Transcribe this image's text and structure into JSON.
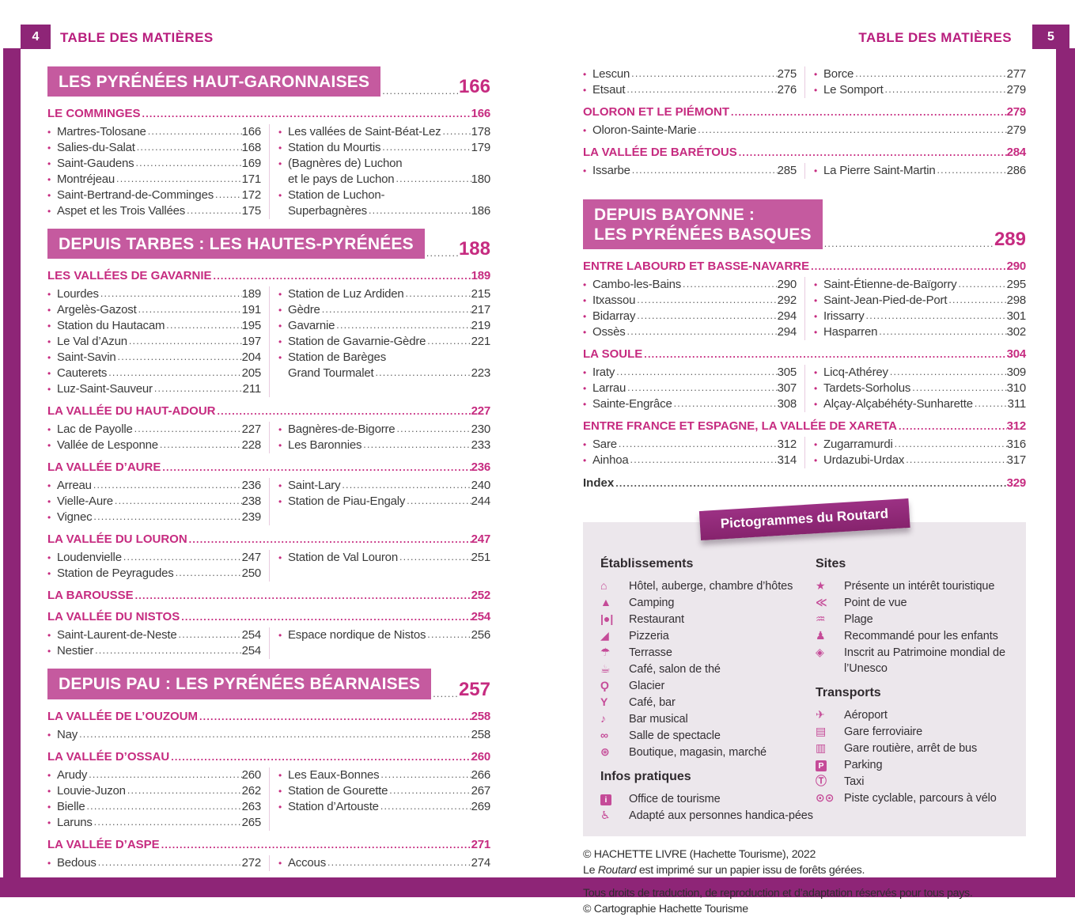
{
  "header": {
    "title": "TABLE DES MATIÈRES",
    "left_page_number": "4",
    "right_page_number": "5"
  },
  "colors": {
    "frame_purple": "#8e2577",
    "part_box_pink": "#c55a9f",
    "accent_pink": "#c62b80",
    "legend_bg": "#ece7ec",
    "body_text": "#3a3a3a"
  },
  "left_page": {
    "sections": [
      {
        "type": "part",
        "title_lines": [
          "LES PYRÉNÉES HAUT-GARONNAISES"
        ],
        "page": "166"
      },
      {
        "type": "chapter",
        "title": "LE COMMINGES",
        "page": "166",
        "columns": [
          [
            {
              "label": "Martres-Tolosane",
              "page": "166"
            },
            {
              "label": "Salies-du-Salat",
              "page": "168"
            },
            {
              "label": "Saint-Gaudens",
              "page": "169"
            },
            {
              "label": "Montréjeau",
              "page": "171"
            },
            {
              "label": "Saint-Bertrand-de-Comminges",
              "page": "172"
            },
            {
              "label": "Aspet et les Trois Vallées",
              "page": "175"
            }
          ],
          [
            {
              "label": "Les vallées de Saint-Béat-Lez",
              "page": "178"
            },
            {
              "label": "Station du Mourtis",
              "page": "179"
            },
            {
              "label": "(Bagnères de) Luchon"
            },
            {
              "label": "et le pays de Luchon",
              "page": "180",
              "cont": true
            },
            {
              "label": "Station de Luchon-"
            },
            {
              "label": "Superbagnères",
              "page": "186",
              "cont": true
            }
          ]
        ]
      },
      {
        "type": "part",
        "title_lines": [
          "DEPUIS TARBES : LES HAUTES-PYRÉNÉES"
        ],
        "page": "188"
      },
      {
        "type": "chapter",
        "title": "LES VALLÉES DE GAVARNIE",
        "page": "189",
        "columns": [
          [
            {
              "label": "Lourdes",
              "page": "189"
            },
            {
              "label": "Argelès-Gazost",
              "page": "191"
            },
            {
              "label": "Station du Hautacam",
              "page": "195"
            },
            {
              "label": "Le Val d’Azun",
              "page": "197"
            },
            {
              "label": "Saint-Savin",
              "page": "204"
            },
            {
              "label": "Cauterets",
              "page": "205"
            },
            {
              "label": "Luz-Saint-Sauveur",
              "page": "211"
            }
          ],
          [
            {
              "label": "Station de Luz Ardiden",
              "page": "215"
            },
            {
              "label": "Gèdre",
              "page": "217"
            },
            {
              "label": "Gavarnie",
              "page": "219"
            },
            {
              "label": "Station de Gavarnie-Gèdre",
              "page": "221"
            },
            {
              "label": "Station de Barèges"
            },
            {
              "label": "Grand Tourmalet",
              "page": "223",
              "cont": true
            }
          ]
        ]
      },
      {
        "type": "chapter",
        "title": "LA VALLÉE DU HAUT-ADOUR",
        "page": "227",
        "columns": [
          [
            {
              "label": "Lac de Payolle",
              "page": "227"
            },
            {
              "label": "Vallée de Lesponne",
              "page": "228"
            }
          ],
          [
            {
              "label": "Bagnères-de-Bigorre",
              "page": "230"
            },
            {
              "label": "Les Baronnies",
              "page": "233"
            }
          ]
        ]
      },
      {
        "type": "chapter",
        "title": "LA VALLÉE D’AURE",
        "page": "236",
        "columns": [
          [
            {
              "label": "Arreau",
              "page": "236"
            },
            {
              "label": "Vielle-Aure",
              "page": "238"
            },
            {
              "label": "Vignec",
              "page": "239"
            }
          ],
          [
            {
              "label": "Saint-Lary",
              "page": "240"
            },
            {
              "label": "Station de Piau-Engaly",
              "page": "244"
            }
          ]
        ]
      },
      {
        "type": "chapter",
        "title": "LA VALLÉE DU LOURON",
        "page": "247",
        "columns": [
          [
            {
              "label": "Loudenvielle",
              "page": "247"
            },
            {
              "label": "Station de Peyragudes",
              "page": "250"
            }
          ],
          [
            {
              "label": "Station de Val Louron",
              "page": "251"
            }
          ]
        ]
      },
      {
        "type": "chapter",
        "title": "LA BAROUSSE",
        "page": "252"
      },
      {
        "type": "chapter",
        "title": "LA VALLÉE DU NISTOS",
        "page": "254",
        "columns": [
          [
            {
              "label": "Saint-Laurent-de-Neste",
              "page": "254"
            },
            {
              "label": "Nestier",
              "page": "254"
            }
          ],
          [
            {
              "label": "Espace nordique de Nistos",
              "page": "256"
            }
          ]
        ]
      },
      {
        "type": "part",
        "title_lines": [
          "DEPUIS PAU : LES PYRÉNÉES BÉARNAISES"
        ],
        "page": "257"
      },
      {
        "type": "chapter",
        "title": "LA VALLÉE DE L’OUZOUM",
        "page": "258",
        "columns": [
          [
            {
              "label": "Nay",
              "page": "258"
            }
          ]
        ]
      },
      {
        "type": "chapter",
        "title": "LA VALLÉE D’OSSAU",
        "page": "260",
        "columns": [
          [
            {
              "label": "Arudy",
              "page": "260"
            },
            {
              "label": "Louvie-Juzon",
              "page": "262"
            },
            {
              "label": "Bielle",
              "page": "263"
            },
            {
              "label": "Laruns",
              "page": "265"
            }
          ],
          [
            {
              "label": "Les Eaux-Bonnes",
              "page": "266"
            },
            {
              "label": "Station de Gourette",
              "page": "267"
            },
            {
              "label": "Station d’Artouste",
              "page": "269"
            }
          ]
        ]
      },
      {
        "type": "chapter",
        "title": "LA VALLÉE D’ASPE",
        "page": "271",
        "columns": [
          [
            {
              "label": "Bedous",
              "page": "272"
            }
          ],
          [
            {
              "label": "Accous",
              "page": "274"
            }
          ]
        ]
      }
    ]
  },
  "right_page": {
    "sections": [
      {
        "type": "list",
        "columns": [
          [
            {
              "label": "Lescun",
              "page": "275"
            },
            {
              "label": "Etsaut",
              "page": "276"
            }
          ],
          [
            {
              "label": "Borce",
              "page": "277"
            },
            {
              "label": "Le Somport",
              "page": "279"
            }
          ]
        ]
      },
      {
        "type": "chapter",
        "title": "OLORON ET LE PIÉMONT",
        "page": "279",
        "columns": [
          [
            {
              "label": "Oloron-Sainte-Marie",
              "page": "279"
            }
          ]
        ]
      },
      {
        "type": "chapter",
        "title": "LA VALLÉE DE BARÉTOUS",
        "page": "284",
        "columns": [
          [
            {
              "label": "Issarbe",
              "page": "285"
            }
          ],
          [
            {
              "label": "La Pierre Saint-Martin",
              "page": "286"
            }
          ]
        ]
      },
      {
        "type": "part",
        "title_lines": [
          "DEPUIS BAYONNE :",
          "LES PYRÉNÉES BASQUES"
        ],
        "page": "289",
        "gap_before": true
      },
      {
        "type": "chapter",
        "title": "ENTRE LABOURD ET BASSE-NAVARRE",
        "page": "290",
        "columns": [
          [
            {
              "label": "Cambo-les-Bains",
              "page": "290"
            },
            {
              "label": "Itxassou",
              "page": "292"
            },
            {
              "label": "Bidarray",
              "page": "294"
            },
            {
              "label": "Ossès",
              "page": "294"
            }
          ],
          [
            {
              "label": "Saint-Étienne-de-Baïgorry",
              "page": "295"
            },
            {
              "label": "Saint-Jean-Pied-de-Port",
              "page": "298"
            },
            {
              "label": "Irissarry",
              "page": "301"
            },
            {
              "label": "Hasparren",
              "page": "302"
            }
          ]
        ]
      },
      {
        "type": "chapter",
        "title": "LA SOULE",
        "page": "304",
        "columns": [
          [
            {
              "label": "Iraty",
              "page": "305"
            },
            {
              "label": "Larrau",
              "page": "307"
            },
            {
              "label": "Sainte-Engrâce",
              "page": "308"
            }
          ],
          [
            {
              "label": "Licq-Athérey",
              "page": "309"
            },
            {
              "label": "Tardets-Sorholus",
              "page": "310"
            },
            {
              "label": "Alçay-Alçabéhéty-Sunharette",
              "page": "311"
            }
          ]
        ]
      },
      {
        "type": "chapter",
        "title": "ENTRE FRANCE ET ESPAGNE, LA VALLÉE DE XARETA",
        "page": "312",
        "columns": [
          [
            {
              "label": "Sare",
              "page": "312"
            },
            {
              "label": "Ainhoa",
              "page": "314"
            }
          ],
          [
            {
              "label": "Zugarramurdi",
              "page": "316"
            },
            {
              "label": "Urdazubi-Urdax",
              "page": "317"
            }
          ]
        ]
      },
      {
        "type": "index",
        "title": "Index",
        "page": "329"
      }
    ]
  },
  "legend": {
    "banner": "Pictogrammes du Routard",
    "column1": [
      {
        "title": "Établissements",
        "items": [
          {
            "icon": "hotel-icon",
            "glyph": "⌂",
            "label": "Hôtel, auberge, chambre d’hôtes"
          },
          {
            "icon": "tent-icon",
            "glyph": "▲",
            "label": "Camping"
          },
          {
            "icon": "restaurant-icon",
            "glyph": "|●|",
            "label": "Restaurant"
          },
          {
            "icon": "pizza-icon",
            "glyph": "◢",
            "label": "Pizzeria"
          },
          {
            "icon": "umbrella-icon",
            "glyph": "☂",
            "label": "Terrasse"
          },
          {
            "icon": "coffee-cup-icon",
            "glyph": "☕",
            "label": "Café, salon de thé"
          },
          {
            "icon": "ice-cream-icon",
            "glyph": "Ϙ",
            "label": "Glacier"
          },
          {
            "icon": "cocktail-icon",
            "glyph": "Y",
            "label": "Café, bar"
          },
          {
            "icon": "music-note-icon",
            "glyph": "♪",
            "label": "Bar musical"
          },
          {
            "icon": "opera-glasses-icon",
            "glyph": "∞",
            "label": "Salle de spectacle"
          },
          {
            "icon": "basket-icon",
            "glyph": "⊛",
            "label": "Boutique, magasin, marché"
          }
        ]
      },
      {
        "title": "Infos pratiques",
        "items": [
          {
            "icon": "tourist-office-icon",
            "glyph": "i",
            "boxed": true,
            "label": "Office de tourisme"
          },
          {
            "icon": "wheelchair-icon",
            "glyph": "♿",
            "label": "Adapté aux personnes handica-pées"
          }
        ]
      }
    ],
    "column2": [
      {
        "title": "Sites",
        "items": [
          {
            "icon": "tourist-interest-icon",
            "glyph": "★",
            "label": "Présente un intérêt touristique"
          },
          {
            "icon": "viewpoint-icon",
            "glyph": "≪",
            "label": "Point de vue"
          },
          {
            "icon": "beach-icon",
            "glyph": "♒",
            "label": "Plage"
          },
          {
            "icon": "child-friendly-icon",
            "glyph": "♟",
            "label": "Recommandé pour les enfants"
          },
          {
            "icon": "unesco-icon",
            "glyph": "◈",
            "label": "Inscrit au Patrimoine mondial de l’Unesco"
          }
        ]
      },
      {
        "title": "Transports",
        "items": [
          {
            "icon": "airplane-icon",
            "glyph": "✈",
            "label": "Aéroport"
          },
          {
            "icon": "train-icon",
            "glyph": "▤",
            "label": "Gare ferroviaire"
          },
          {
            "icon": "bus-icon",
            "glyph": "▥",
            "label": "Gare routière, arrêt de bus"
          },
          {
            "icon": "parking-icon",
            "glyph": "P",
            "boxed": true,
            "label": "Parking"
          },
          {
            "icon": "taxi-icon",
            "glyph": "Ⓣ",
            "label": "Taxi"
          },
          {
            "icon": "bicycle-icon",
            "glyph": "⊙⊙",
            "label": "Piste cyclable, parcours à vélo"
          }
        ]
      }
    ]
  },
  "footer": {
    "line1": "© HACHETTE LIVRE (Hachette Tourisme), 2022",
    "line2_prefix": "Le ",
    "line2_italic": "Routard",
    "line2_suffix": " est imprimé sur un papier issu de forêts gérées.",
    "line3": "Tous droits de traduction, de reproduction et d’adaptation réservés pour tous pays.",
    "line4": "© Cartographie Hachette Tourisme"
  }
}
